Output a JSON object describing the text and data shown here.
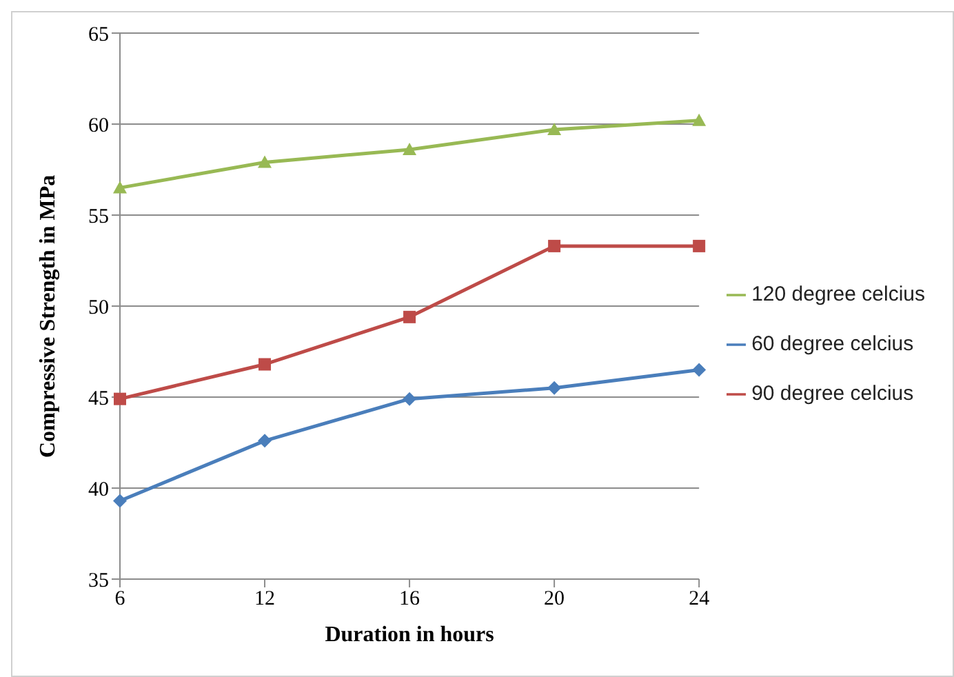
{
  "chart_data": {
    "type": "line",
    "xlabel": "Duration  in hours",
    "ylabel": "Compressive Strength in MPa",
    "categories": [
      "6",
      "12",
      "16",
      "20",
      "24"
    ],
    "series": [
      {
        "name": "60 degree celcius",
        "color": "#4a7ebb",
        "values": [
          39.3,
          42.6,
          44.9,
          45.5,
          46.5
        ],
        "marker": "diamond"
      },
      {
        "name": "90 degree celcius",
        "color": "#be4b48",
        "values": [
          44.9,
          46.8,
          49.4,
          53.3,
          53.3
        ],
        "marker": "square"
      },
      {
        "name": "120 degree celcius",
        "color": "#98b954",
        "values": [
          56.5,
          57.9,
          58.6,
          59.7,
          60.2
        ],
        "marker": "triangle"
      }
    ],
    "ylim": [
      35,
      65
    ],
    "yticks": [
      35,
      40,
      45,
      50,
      55,
      60,
      65
    ],
    "grid": "y",
    "legend": "right"
  }
}
